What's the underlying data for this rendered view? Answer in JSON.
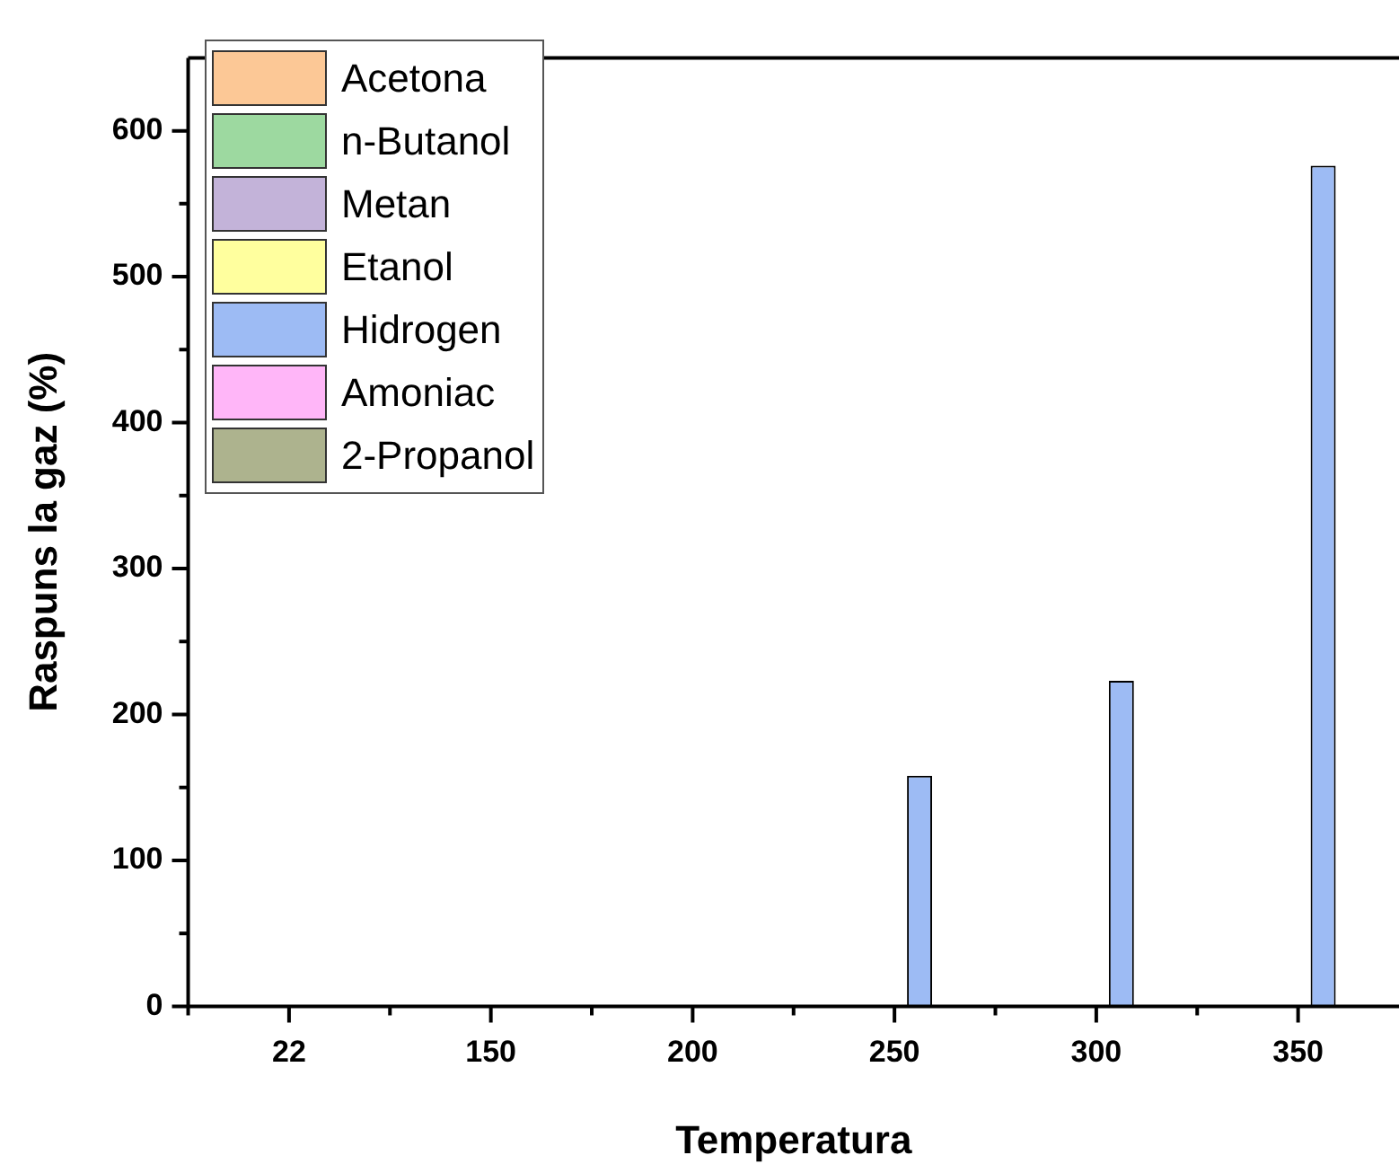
{
  "chart_data": {
    "type": "bar",
    "xlabel": "Temperatura",
    "ylabel": "Raspuns la gaz (%)",
    "categories": [
      "22",
      "150",
      "200",
      "250",
      "300",
      "350"
    ],
    "series": [
      {
        "name": "Acetona",
        "color": "#fcc896",
        "values": [
          0,
          0,
          0,
          0,
          0,
          0
        ]
      },
      {
        "name": "n-Butanol",
        "color": "#9dd9a0",
        "values": [
          0,
          0,
          0,
          0,
          0,
          0
        ]
      },
      {
        "name": "Metan",
        "color": "#c3b3d9",
        "values": [
          0,
          0,
          0,
          0,
          0,
          0
        ]
      },
      {
        "name": "Etanol",
        "color": "#ffff9e",
        "values": [
          0,
          0,
          0,
          0,
          0,
          0
        ]
      },
      {
        "name": "Hidrogen",
        "color": "#9dbbf4",
        "values": [
          0,
          0,
          0,
          158,
          223,
          576
        ]
      },
      {
        "name": "Amoniac",
        "color": "#ffb6f8",
        "values": [
          0,
          0,
          0,
          0,
          0,
          0
        ]
      },
      {
        "name": "2-Propanol",
        "color": "#adb38e",
        "values": [
          0,
          0,
          0,
          0,
          0,
          0
        ]
      }
    ],
    "ylim": [
      0,
      650
    ],
    "yticks": [
      0,
      100,
      200,
      300,
      400,
      500,
      600
    ],
    "grid": false,
    "legend": "top left"
  }
}
